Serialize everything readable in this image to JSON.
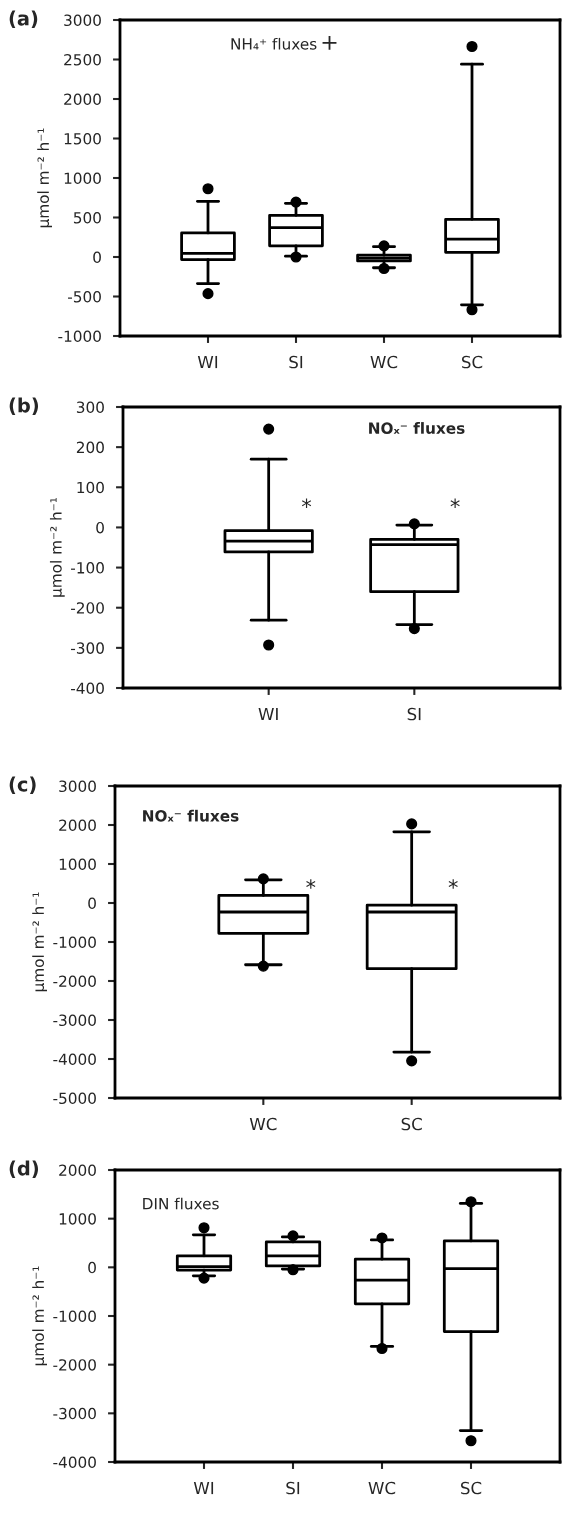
{
  "chart_data": [
    {
      "type": "box",
      "title": "(a)",
      "ylabel": "µmol m⁻² h⁻¹",
      "categories": [
        "WI",
        "SI",
        "WC",
        "SC"
      ],
      "boxes": [
        {
          "low": -336,
          "q1": -32,
          "median": 45,
          "q3": 305,
          "high": 705,
          "outliers": [
            864,
            -464
          ]
        },
        {
          "low": 10,
          "q1": 141,
          "median": 373,
          "q3": 527,
          "high": 680,
          "outliers": [
            695,
            0
          ]
        },
        {
          "low": -136,
          "q1": -50,
          "median": -14,
          "q3": 23,
          "high": 130,
          "outliers": [
            141,
            -145
          ]
        },
        {
          "low": -605,
          "q1": 59,
          "median": 227,
          "q3": 477,
          "high": 2441,
          "outliers": [
            2664,
            -668
          ]
        }
      ],
      "ylim": [
        -1000,
        3000
      ],
      "yticks": [
        -1000,
        -500,
        0,
        500,
        1000,
        1500,
        2000,
        2500,
        3000
      ],
      "annotations": [
        "NH₄⁺ fluxes",
        "+"
      ]
    },
    {
      "type": "box",
      "title": "(b)",
      "ylabel": "µmol m⁻² h⁻¹",
      "categories": [
        "WI",
        "SI"
      ],
      "boxes": [
        {
          "low": -231,
          "q1": -61,
          "median": -34,
          "q3": -8,
          "high": 170,
          "outliers": [
            245,
            -293
          ]
        },
        {
          "low": -242,
          "q1": -160,
          "median": -43,
          "q3": -30,
          "high": 6,
          "outliers": [
            9,
            -252
          ]
        }
      ],
      "ylim": [
        -400,
        300
      ],
      "yticks": [
        -400,
        -300,
        -200,
        -100,
        0,
        100,
        200,
        300
      ],
      "annotations": [
        "NOₓ⁻ fluxes",
        "*",
        "*"
      ]
    },
    {
      "type": "box",
      "title": "(c)",
      "ylabel": "µmol m⁻² h⁻¹",
      "categories": [
        "WC",
        "SC"
      ],
      "boxes": [
        {
          "low": -1583,
          "q1": -778,
          "median": -231,
          "q3": 194,
          "high": 593,
          "outliers": [
            620,
            -1620
          ]
        },
        {
          "low": -3822,
          "q1": -1685,
          "median": -231,
          "q3": -56,
          "high": 1824,
          "outliers": [
            2028,
            -4047
          ]
        }
      ],
      "ylim": [
        -5000,
        3000
      ],
      "yticks": [
        -5000,
        -4000,
        -3000,
        -2000,
        -1000,
        0,
        1000,
        2000,
        3000
      ],
      "annotations": [
        "NOₓ⁻ fluxes",
        "*",
        "*"
      ]
    },
    {
      "type": "box",
      "title": "(d)",
      "ylabel": "µmol m⁻² h⁻¹",
      "categories": [
        "WI",
        "SI",
        "WC",
        "SC"
      ],
      "boxes": [
        {
          "low": -174,
          "q1": -56,
          "median": 14,
          "q3": 236,
          "high": 667,
          "outliers": [
            813,
            -222
          ]
        },
        {
          "low": -35,
          "q1": 28,
          "median": 236,
          "q3": 521,
          "high": 625,
          "outliers": [
            646,
            -49
          ]
        },
        {
          "low": -1625,
          "q1": -750,
          "median": -264,
          "q3": 167,
          "high": 563,
          "outliers": [
            604,
            -1667
          ]
        },
        {
          "low": -3354,
          "q1": -1319,
          "median": -28,
          "q3": 542,
          "high": 1313,
          "outliers": [
            1347,
            -3563
          ]
        }
      ],
      "ylim": [
        -4000,
        2000
      ],
      "yticks": [
        -4000,
        -3000,
        -2000,
        -1000,
        0,
        1000,
        2000
      ],
      "annotations": [
        "DIN fluxes"
      ]
    }
  ]
}
